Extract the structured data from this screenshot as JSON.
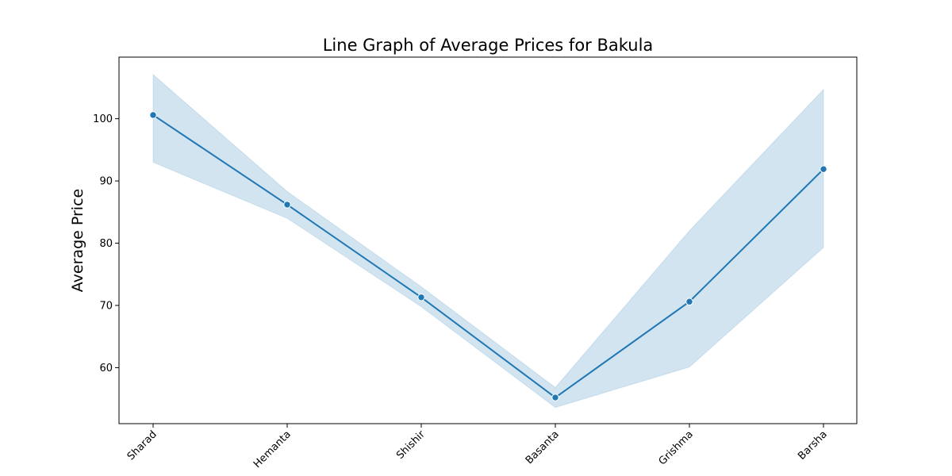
{
  "chart_data": {
    "type": "line",
    "title": "Line Graph of Average Prices for Bakula",
    "xlabel": "",
    "ylabel": "Average Price",
    "categories": [
      "Sharad",
      "Hemanta",
      "Shishir",
      "Basanta",
      "Grishma",
      "Barsha"
    ],
    "series": [
      {
        "values": [
          100.6,
          86.2,
          71.3,
          55.2,
          70.6,
          91.9
        ],
        "ci_lower": [
          93.0,
          84.0,
          69.8,
          53.6,
          60.1,
          79.3
        ],
        "ci_upper": [
          107.1,
          88.3,
          73.0,
          56.8,
          82.0,
          104.7
        ],
        "color": "#1f77b4",
        "band_color": "#1f77b4",
        "band_opacity": 0.2,
        "marker": "circle"
      }
    ],
    "yticks": [
      60,
      70,
      80,
      90,
      100
    ],
    "ylim": [
      51.0,
      109.9
    ],
    "grid": false,
    "legend": "none",
    "x_tick_rotation": 45
  }
}
